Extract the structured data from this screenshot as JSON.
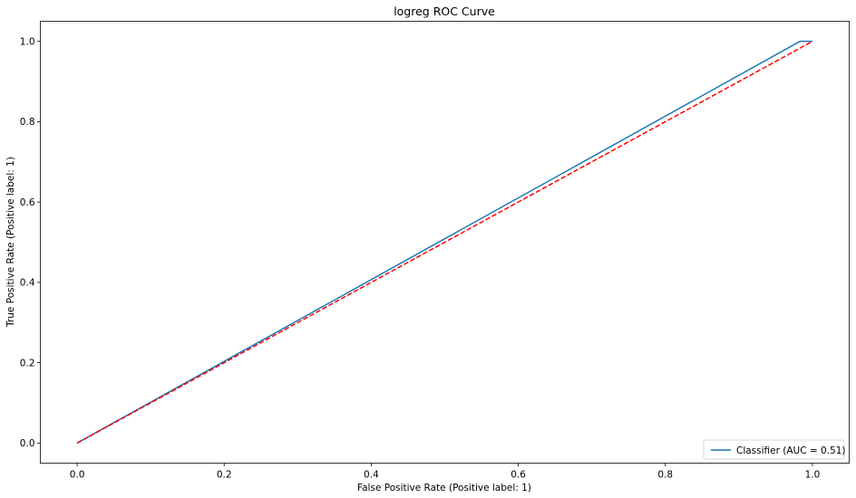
{
  "chart_data": {
    "type": "line",
    "title": "logreg ROC Curve",
    "xlabel": "False Positive Rate (Positive label: 1)",
    "ylabel": "True Positive Rate (Positive label: 1)",
    "xlim": [
      -0.05,
      1.05
    ],
    "ylim": [
      -0.05,
      1.05
    ],
    "xticks": [
      0.0,
      0.2,
      0.4,
      0.6,
      0.8,
      1.0
    ],
    "yticks": [
      0.0,
      0.2,
      0.4,
      0.6,
      0.8,
      1.0
    ],
    "xtick_labels": [
      "0.0",
      "0.2",
      "0.4",
      "0.6",
      "0.8",
      "1.0"
    ],
    "ytick_labels": [
      "0.0",
      "0.2",
      "0.4",
      "0.6",
      "0.8",
      "1.0"
    ],
    "grid": false,
    "legend_position": "lower-right",
    "series": [
      {
        "name": "Classifier (AUC = 0.51)",
        "color": "#1f77b4",
        "style": "solid",
        "x": [
          0.0,
          0.983,
          1.0
        ],
        "y": [
          0.0,
          1.0,
          1.0
        ]
      },
      {
        "color": "#ff0000",
        "style": "dashed",
        "x": [
          0.0,
          1.0
        ],
        "y": [
          0.0,
          1.0
        ]
      }
    ]
  }
}
